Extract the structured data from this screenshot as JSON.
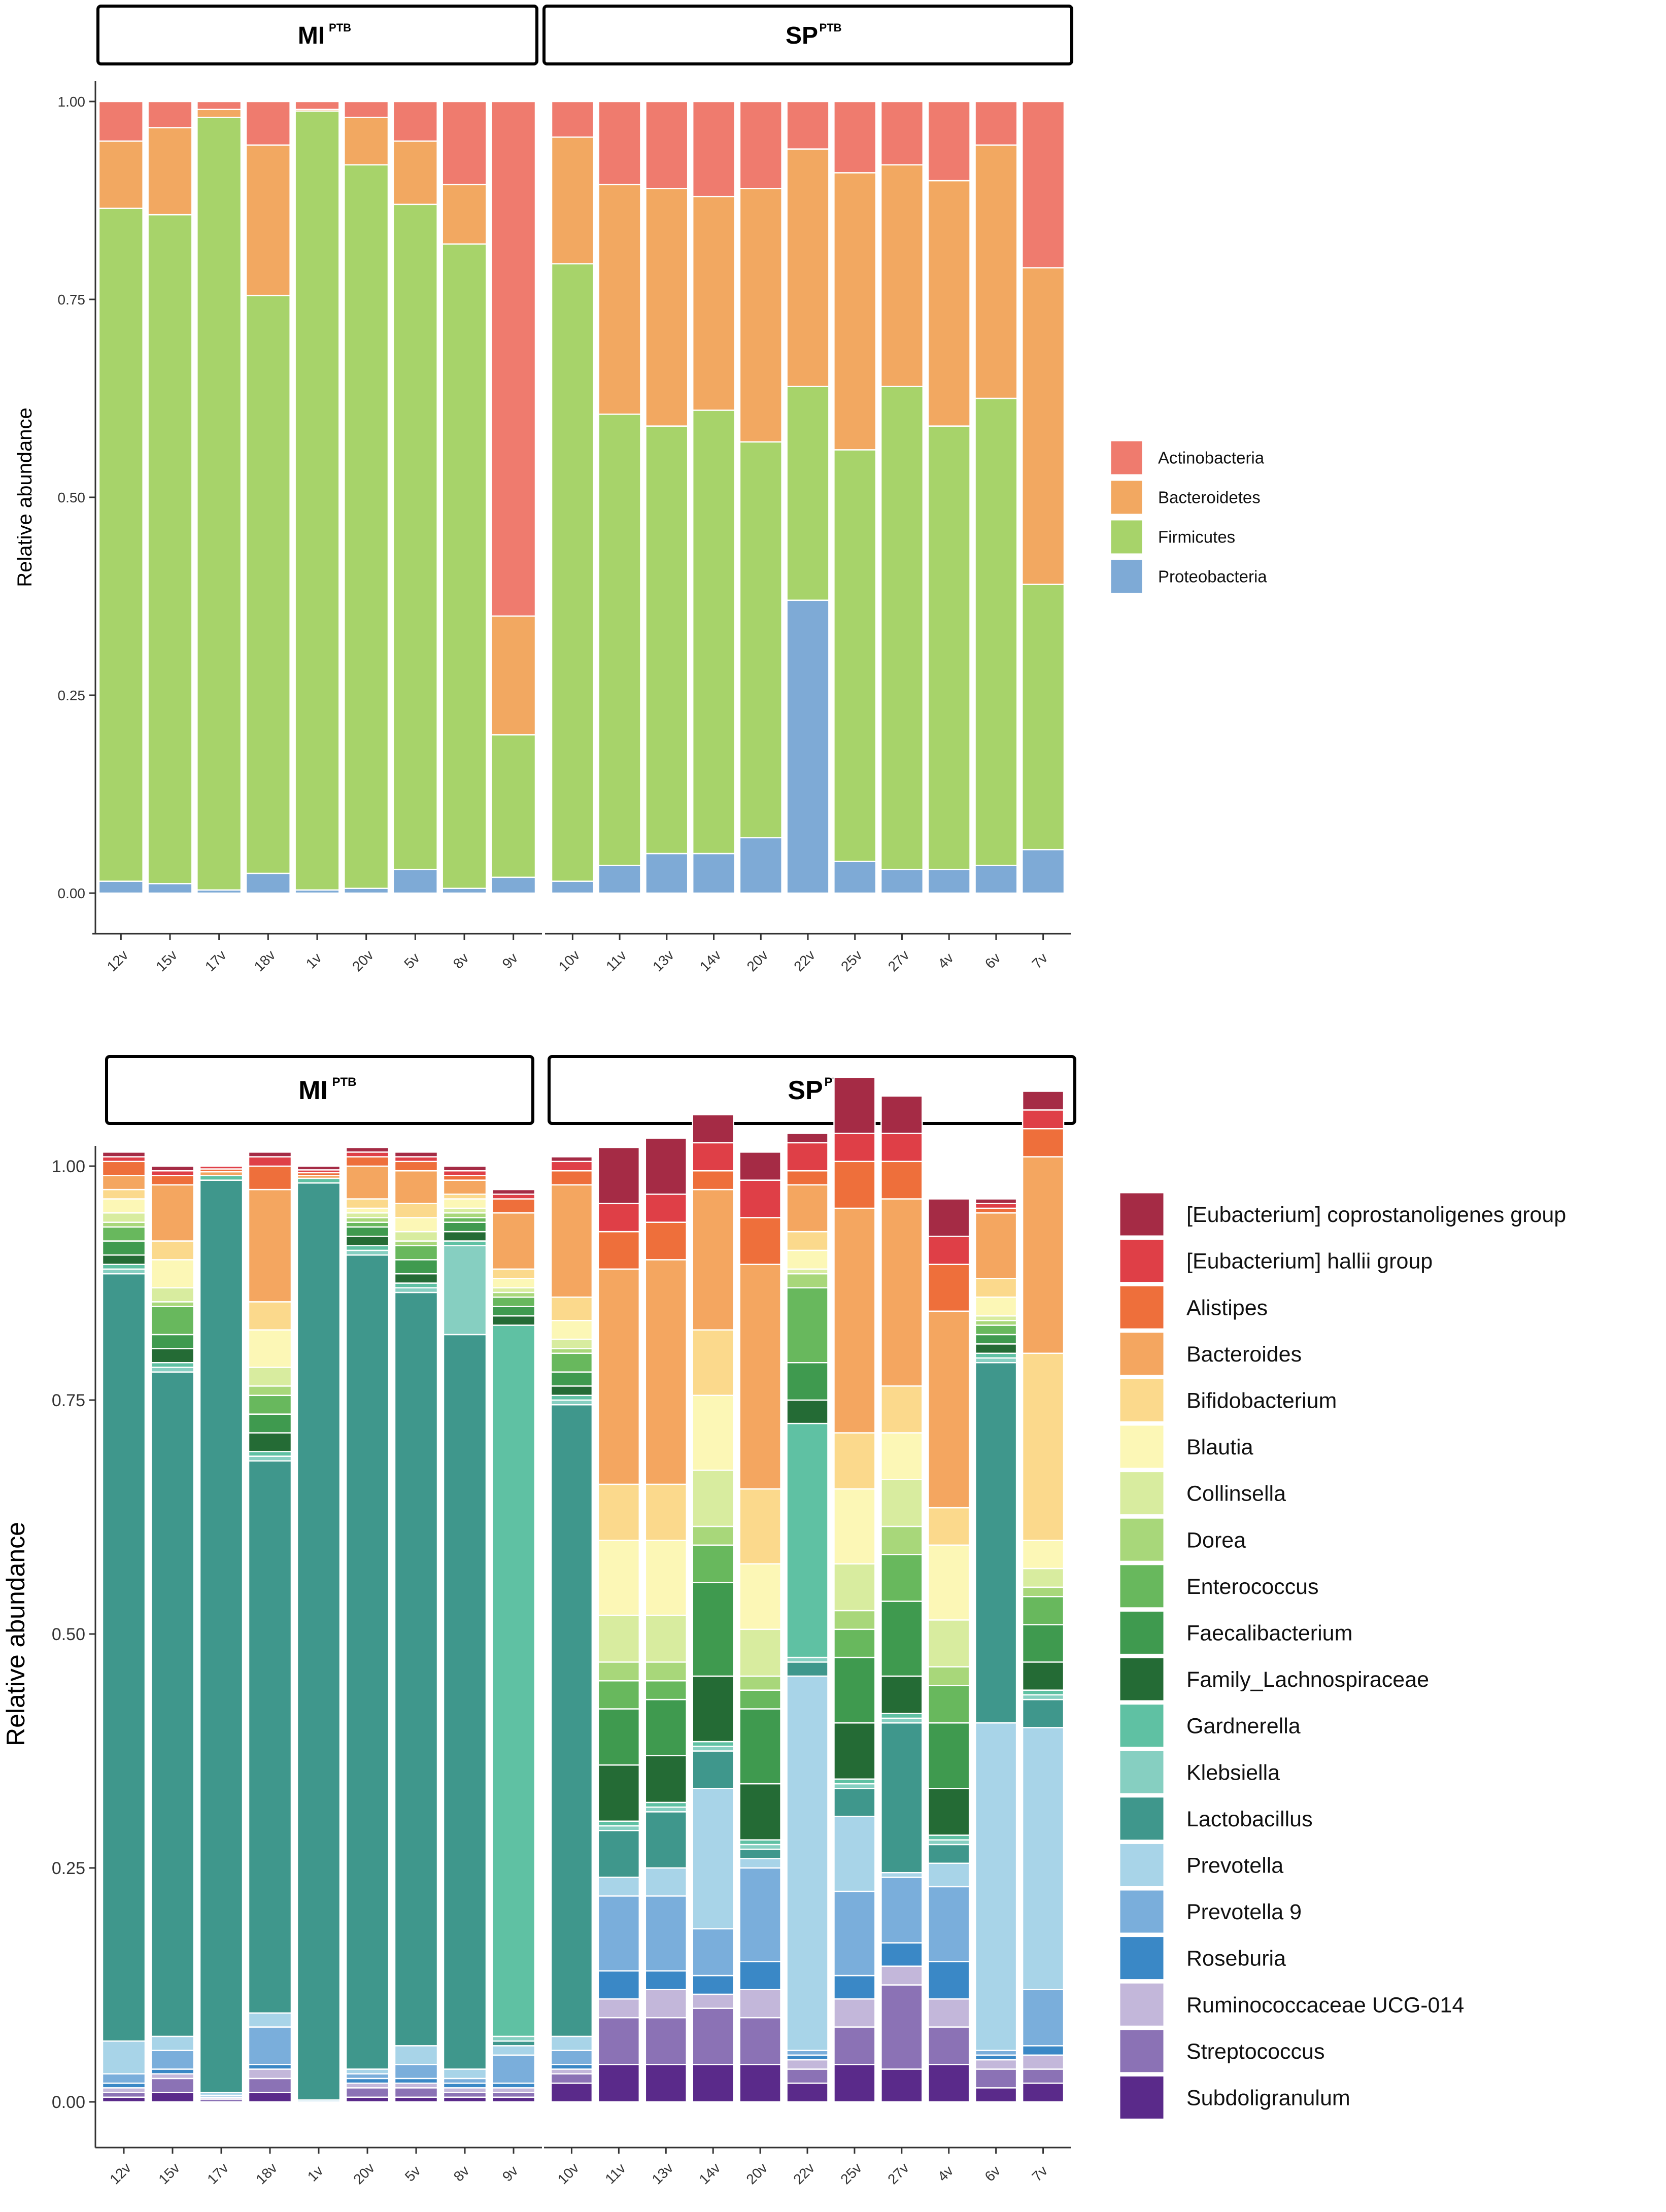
{
  "chart_data": [
    {
      "type": "bar",
      "stacked": true,
      "title": "",
      "xlabel": "",
      "ylabel": "Relative abundance",
      "ylim": [
        0,
        1
      ],
      "yticks": [
        "0.00",
        "0.25",
        "0.50",
        "0.75",
        "1.00"
      ],
      "facets": [
        {
          "label": "MI",
          "sup": "PTB",
          "categories": [
            "12v",
            "15v",
            "17v",
            "18v",
            "1v",
            "20v",
            "5v",
            "8v",
            "9v"
          ]
        },
        {
          "label": "SP",
          "sup": "PTB",
          "categories": [
            "10v",
            "11v",
            "13v",
            "14v",
            "20v",
            "22v",
            "25v",
            "27v",
            "4v",
            "6v",
            "7v"
          ]
        }
      ],
      "legend_position": "right",
      "series": [
        {
          "name": "Proteobacteria",
          "color": "#7eaad6",
          "values": [
            0.015,
            0.012,
            0.004,
            0.025,
            0.004,
            0.006,
            0.03,
            0.006,
            0.02,
            0.015,
            0.035,
            0.05,
            0.05,
            0.07,
            0.37,
            0.04,
            0.03,
            0.03,
            0.035,
            0.055
          ]
        },
        {
          "name": "Firmicutes",
          "color": "#a7d36a",
          "values": [
            0.85,
            0.845,
            0.976,
            0.73,
            0.984,
            0.914,
            0.84,
            0.814,
            0.18,
            0.78,
            0.57,
            0.54,
            0.56,
            0.5,
            0.27,
            0.52,
            0.61,
            0.56,
            0.59,
            0.335
          ]
        },
        {
          "name": "Bacteroidetes",
          "color": "#f2a861",
          "values": [
            0.085,
            0.11,
            0.01,
            0.19,
            0.002,
            0.06,
            0.08,
            0.075,
            0.15,
            0.16,
            0.29,
            0.3,
            0.27,
            0.32,
            0.3,
            0.35,
            0.28,
            0.31,
            0.32,
            0.4
          ]
        },
        {
          "name": "Actinobacteria",
          "color": "#ef7b6e",
          "values": [
            0.05,
            0.033,
            0.01,
            0.055,
            0.01,
            0.02,
            0.05,
            0.105,
            0.65,
            0.045,
            0.105,
            0.11,
            0.12,
            0.11,
            0.06,
            0.09,
            0.08,
            0.1,
            0.055,
            0.21
          ]
        }
      ],
      "legend_order": [
        "Actinobacteria",
        "Bacteroidetes",
        "Firmicutes",
        "Proteobacteria"
      ]
    },
    {
      "type": "bar",
      "stacked": true,
      "title": "",
      "xlabel": "",
      "ylabel": "Relative abundance",
      "ylim": [
        0,
        1
      ],
      "yticks": [
        "0.00",
        "0.25",
        "0.50",
        "0.75",
        "1.00"
      ],
      "facets": [
        {
          "label": "MI",
          "sup": "PTB",
          "categories": [
            "12v",
            "15v",
            "17v",
            "18v",
            "1v",
            "20v",
            "5v",
            "8v",
            "9v"
          ]
        },
        {
          "label": "SP",
          "sup": "PTB",
          "categories": [
            "10v",
            "11v",
            "13v",
            "14v",
            "20v",
            "22v",
            "25v",
            "27v",
            "4v",
            "6v",
            "7v"
          ]
        }
      ],
      "legend_position": "right",
      "series": [
        {
          "name": "Subdoligranulum",
          "color": "#5a2a8a",
          "values": [
            0.005,
            0.01,
            0,
            0.01,
            0,
            0.005,
            0.005,
            0.005,
            0.005,
            0.02,
            0.04,
            0.04,
            0.04,
            0.04,
            0.02,
            0.04,
            0.035,
            0.04,
            0.015,
            0.02
          ]
        },
        {
          "name": "Streptococcus",
          "color": "#8b72b5",
          "values": [
            0.005,
            0.015,
            0.003,
            0.015,
            0,
            0.01,
            0.01,
            0.005,
            0.005,
            0.01,
            0.05,
            0.05,
            0.06,
            0.05,
            0.015,
            0.04,
            0.09,
            0.04,
            0.02,
            0.015
          ]
        },
        {
          "name": "Ruminococcaceae UCG-014",
          "color": "#c3b7da",
          "values": [
            0.005,
            0.005,
            0.002,
            0.01,
            0,
            0.005,
            0.005,
            0.005,
            0.005,
            0.005,
            0.02,
            0.03,
            0.015,
            0.03,
            0.01,
            0.03,
            0.02,
            0.03,
            0.01,
            0.015
          ]
        },
        {
          "name": "Roseburia",
          "color": "#3a88c6",
          "values": [
            0.005,
            0.005,
            0,
            0.005,
            0,
            0.005,
            0.005,
            0.005,
            0.005,
            0.005,
            0.03,
            0.02,
            0.02,
            0.03,
            0.005,
            0.025,
            0.025,
            0.04,
            0.005,
            0.01
          ]
        },
        {
          "name": "Prevotella 9",
          "color": "#7aaedb",
          "values": [
            0.01,
            0.02,
            0.002,
            0.04,
            0,
            0.005,
            0.015,
            0.005,
            0.03,
            0.015,
            0.08,
            0.08,
            0.05,
            0.1,
            0.005,
            0.09,
            0.07,
            0.08,
            0.005,
            0.06
          ]
        },
        {
          "name": "Prevotella",
          "color": "#a8d4e8",
          "values": [
            0.035,
            0.015,
            0.003,
            0.015,
            0.002,
            0.005,
            0.02,
            0.01,
            0.01,
            0.015,
            0.02,
            0.03,
            0.15,
            0.01,
            0.4,
            0.08,
            0.005,
            0.025,
            0.35,
            0.28
          ]
        },
        {
          "name": "Lactobacillus",
          "color": "#3f978c",
          "values": [
            0.82,
            0.71,
            0.975,
            0.59,
            0.98,
            0.87,
            0.805,
            0.785,
            0.005,
            0.675,
            0.05,
            0.06,
            0.04,
            0.01,
            0.015,
            0.03,
            0.16,
            0.02,
            0.385,
            0.03
          ]
        },
        {
          "name": "Klebsiella",
          "color": "#86cfc1",
          "values": [
            0.005,
            0.005,
            0,
            0.005,
            0,
            0.005,
            0.005,
            0.095,
            0.005,
            0.005,
            0.005,
            0.005,
            0.005,
            0.005,
            0.005,
            0.005,
            0.005,
            0.005,
            0.005,
            0.005
          ]
        },
        {
          "name": "Gardnerella",
          "color": "#5fc1a3",
          "values": [
            0.005,
            0.005,
            0.005,
            0.005,
            0.005,
            0.005,
            0.005,
            0.005,
            0.76,
            0.005,
            0.005,
            0.005,
            0.005,
            0.005,
            0.25,
            0.005,
            0.005,
            0.005,
            0.005,
            0.005
          ]
        },
        {
          "name": "Family_Lachnospiraceae",
          "color": "#246b35",
          "values": [
            0.01,
            0.015,
            0,
            0.02,
            0,
            0.01,
            0.01,
            0.01,
            0.01,
            0.01,
            0.06,
            0.05,
            0.07,
            0.06,
            0.025,
            0.06,
            0.04,
            0.05,
            0.01,
            0.03
          ]
        },
        {
          "name": "Faecalibacterium",
          "color": "#3f9a4f",
          "values": [
            0.015,
            0.015,
            0,
            0.02,
            0,
            0.01,
            0.015,
            0.01,
            0.01,
            0.015,
            0.06,
            0.06,
            0.1,
            0.08,
            0.04,
            0.07,
            0.08,
            0.07,
            0.01,
            0.04
          ]
        },
        {
          "name": "Enterococcus",
          "color": "#68b85d",
          "values": [
            0.015,
            0.03,
            0,
            0.02,
            0,
            0.005,
            0.015,
            0.005,
            0.01,
            0.02,
            0.03,
            0.02,
            0.04,
            0.02,
            0.08,
            0.03,
            0.05,
            0.04,
            0.01,
            0.03
          ]
        },
        {
          "name": "Dorea",
          "color": "#a8d77a",
          "values": [
            0.005,
            0.005,
            0,
            0.01,
            0,
            0.005,
            0.005,
            0.005,
            0.005,
            0.005,
            0.02,
            0.02,
            0.02,
            0.015,
            0.015,
            0.02,
            0.03,
            0.02,
            0.005,
            0.01
          ]
        },
        {
          "name": "Collinsella",
          "color": "#d8ec9f",
          "values": [
            0.01,
            0.015,
            0,
            0.02,
            0,
            0.005,
            0.01,
            0.005,
            0.005,
            0.01,
            0.05,
            0.05,
            0.06,
            0.05,
            0.005,
            0.05,
            0.05,
            0.05,
            0.005,
            0.02
          ]
        },
        {
          "name": "Blautia",
          "color": "#fcf7b6",
          "values": [
            0.015,
            0.03,
            0,
            0.04,
            0,
            0.005,
            0.015,
            0.01,
            0.01,
            0.02,
            0.08,
            0.08,
            0.08,
            0.07,
            0.02,
            0.08,
            0.05,
            0.08,
            0.02,
            0.03
          ]
        },
        {
          "name": "Bifidobacterium",
          "color": "#fbd98c",
          "values": [
            0.01,
            0.02,
            0,
            0.03,
            0,
            0.01,
            0.015,
            0.005,
            0.01,
            0.025,
            0.06,
            0.06,
            0.07,
            0.08,
            0.02,
            0.06,
            0.05,
            0.04,
            0.02,
            0.2
          ]
        },
        {
          "name": "Bacteroides",
          "color": "#f4a660",
          "values": [
            0.015,
            0.06,
            0.004,
            0.12,
            0.003,
            0.035,
            0.035,
            0.015,
            0.06,
            0.12,
            0.23,
            0.24,
            0.15,
            0.24,
            0.05,
            0.24,
            0.2,
            0.21,
            0.07,
            0.21
          ]
        },
        {
          "name": "Alistipes",
          "color": "#ee6f3b",
          "values": [
            0.015,
            0.01,
            0.003,
            0.025,
            0.003,
            0.01,
            0.01,
            0.005,
            0.015,
            0.015,
            0.04,
            0.04,
            0.02,
            0.05,
            0.015,
            0.05,
            0.04,
            0.05,
            0.005,
            0.03
          ]
        },
        {
          "name": "[Eubacterium] hallii group",
          "color": "#df3f47",
          "values": [
            0.005,
            0.005,
            0.003,
            0.01,
            0.003,
            0.005,
            0.005,
            0.005,
            0.005,
            0.01,
            0.03,
            0.03,
            0.03,
            0.04,
            0.03,
            0.03,
            0.03,
            0.03,
            0.005,
            0.02
          ]
        },
        {
          "name": "[Eubacterium] coprostanoligenes group",
          "color": "#a52b45",
          "values": [
            0.005,
            0.005,
            0,
            0.005,
            0.004,
            0.005,
            0.005,
            0.005,
            0.005,
            0.005,
            0.06,
            0.06,
            0.03,
            0.03,
            0.01,
            0.06,
            0.04,
            0.04,
            0.005,
            0.02
          ]
        }
      ],
      "legend_order": [
        "[Eubacterium] coprostanoligenes group",
        "[Eubacterium] hallii group",
        "Alistipes",
        "Bacteroides",
        "Bifidobacterium",
        "Blautia",
        "Collinsella",
        "Dorea",
        "Enterococcus",
        "Faecalibacterium",
        "Family_Lachnospiraceae",
        "Gardnerella",
        "Klebsiella",
        "Lactobacillus",
        "Prevotella",
        "Prevotella 9",
        "Roseburia",
        "Ruminococcaceae UCG-014",
        "Streptococcus",
        "Subdoligranulum"
      ]
    }
  ]
}
